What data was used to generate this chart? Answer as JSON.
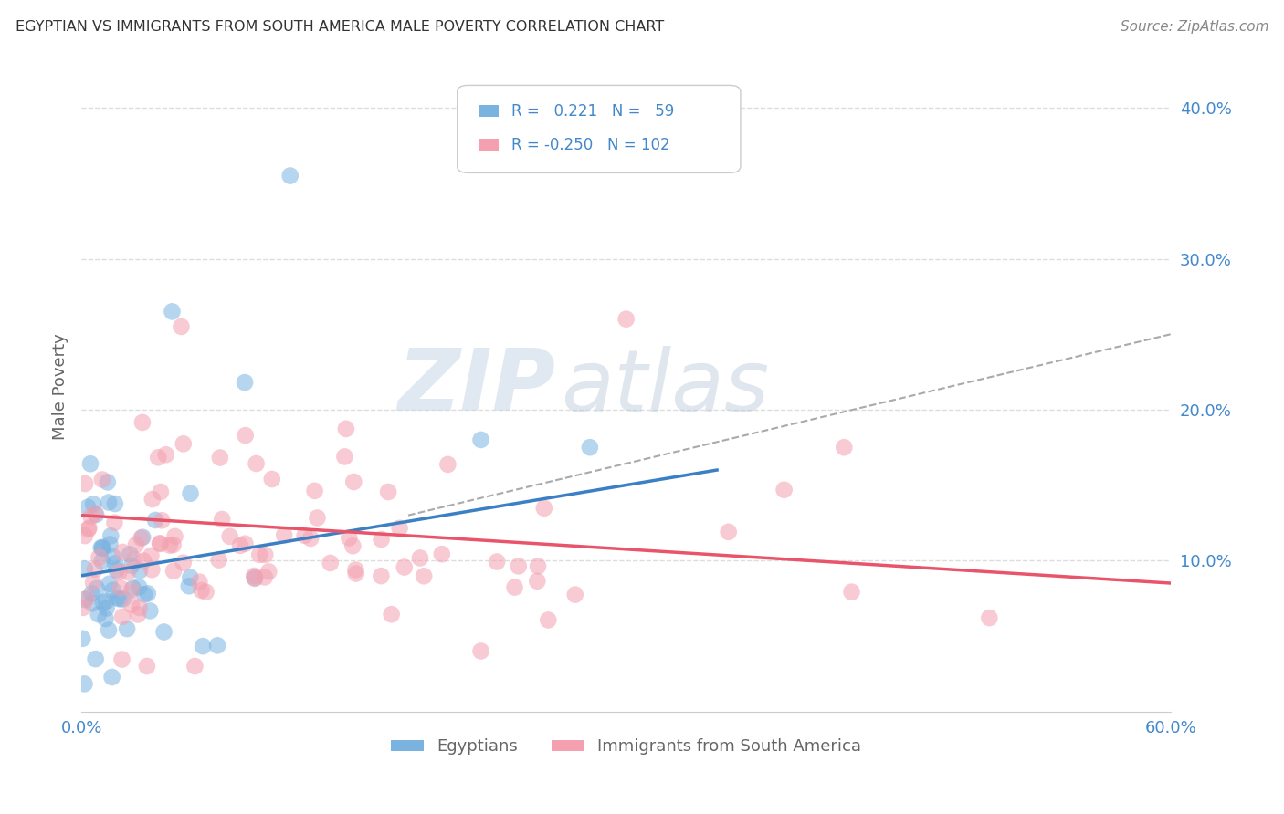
{
  "title": "EGYPTIAN VS IMMIGRANTS FROM SOUTH AMERICA MALE POVERTY CORRELATION CHART",
  "source": "Source: ZipAtlas.com",
  "ylabel": "Male Poverty",
  "xlim": [
    0.0,
    0.6
  ],
  "ylim": [
    0.0,
    0.43
  ],
  "color_blue": "#7ab3e0",
  "color_pink": "#f4a0b0",
  "line_blue": "#3b7fc4",
  "line_pink": "#e8556a",
  "line_dashed": "#aaaaaa",
  "R_blue": 0.221,
  "N_blue": 59,
  "R_pink": -0.25,
  "N_pink": 102,
  "legend_label_blue": "Egyptians",
  "legend_label_pink": "Immigrants from South America",
  "watermark_text": "ZIP",
  "watermark_text2": "atlas",
  "background": "#ffffff",
  "grid_color": "#dddddd",
  "title_color": "#333333",
  "axis_label_color": "#666666",
  "tick_color": "#4488cc",
  "blue_line_x": [
    0.0,
    0.35
  ],
  "blue_line_y": [
    0.09,
    0.16
  ],
  "pink_line_x": [
    0.0,
    0.6
  ],
  "pink_line_y": [
    0.13,
    0.085
  ],
  "dash_line_x": [
    0.18,
    0.6
  ],
  "dash_line_y": [
    0.13,
    0.25
  ]
}
